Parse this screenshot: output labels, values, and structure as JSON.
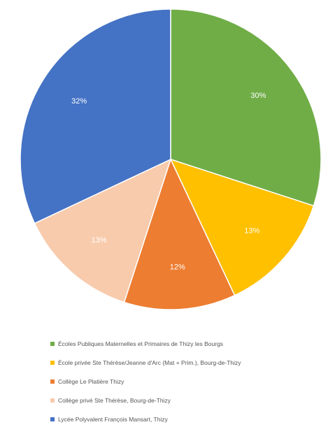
{
  "chart_data": {
    "type": "pie",
    "slices": [
      {
        "label": "Écoles Publiques Maternelles et Primaires de Thizy les Bourgs",
        "value": 30,
        "value_label": "30%",
        "color": "#70ad47"
      },
      {
        "label": "École privée Ste Thérèse/Jeanne d'Arc (Mat + Prim.), Bourg-de-Thizy",
        "value": 13,
        "value_label": "13%",
        "color": "#ffc000"
      },
      {
        "label": "Collège Le Platière Thizy",
        "value": 12,
        "value_label": "12%",
        "color": "#ed7d31"
      },
      {
        "label": "Collège privé Ste Thérèse, Bourg-de-Thizy",
        "value": 13,
        "value_label": "13%",
        "color": "#f8cbad"
      },
      {
        "label": "Lycée Polyvalent François Mansart, Thizy",
        "value": 32,
        "value_label": "32%",
        "color": "#4472c4"
      }
    ],
    "legend_position": "bottom"
  }
}
